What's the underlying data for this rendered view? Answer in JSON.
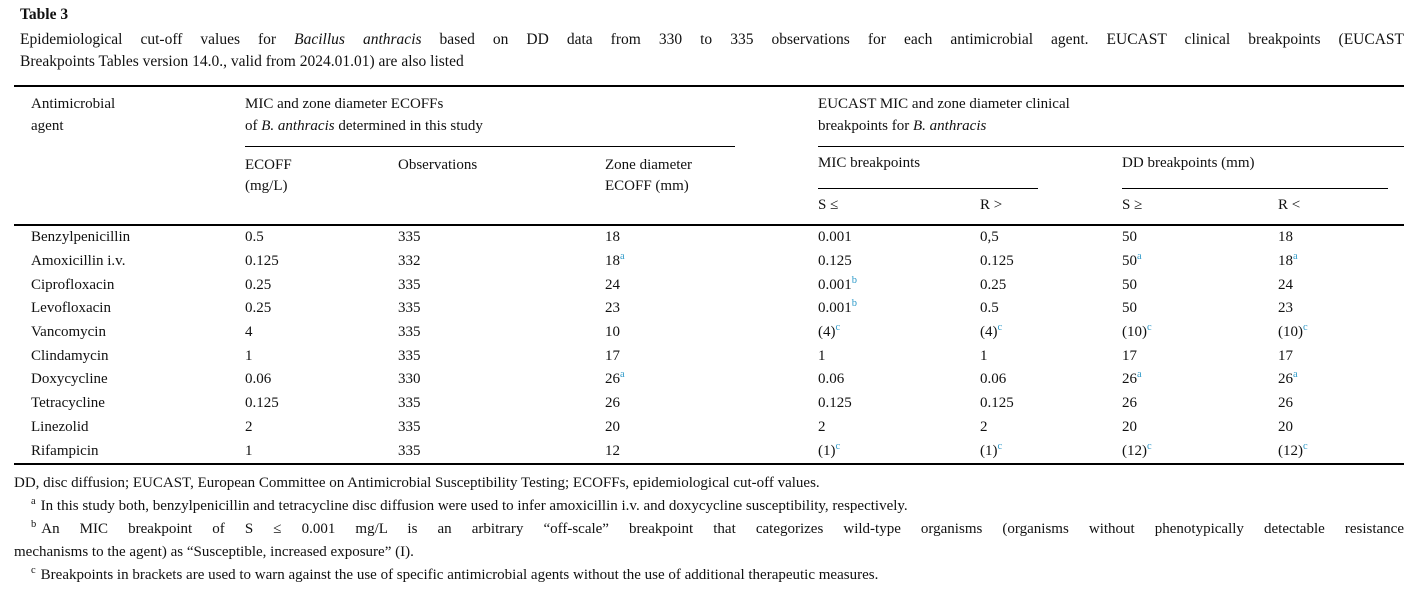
{
  "page": {
    "title": "Table 3"
  },
  "caption": {
    "line1_pre": "Epidemiological cut-off values for ",
    "line1_italic": "Bacillus anthracis",
    "line1_post": " based on DD data from 330 to 335 observations for each antimicrobial agent. EUCAST clinical breakpoints (EUCAST",
    "line2": "Breakpoints Tables version 14.0., valid from 2024.01.01) are also listed"
  },
  "table": {
    "header": {
      "agent_l1": "Antimicrobial",
      "agent_l2": "agent",
      "group1_l1": "MIC and zone diameter ECOFFs",
      "group1_l2a": "of ",
      "group1_l2b": "B. anthracis",
      "group1_l2c": " determined in this study",
      "group2_l1": "EUCAST MIC and zone diameter clinical",
      "group2_l2a": "breakpoints for ",
      "group2_l2b": "B. anthracis",
      "ecoff_l1": "ECOFF",
      "ecoff_l2": "(mg/L)",
      "observations": "Observations",
      "zone_l1": "Zone diameter",
      "zone_l2": "ECOFF (mm)",
      "mic_group": "MIC breakpoints",
      "dd_group": "DD breakpoints (mm)",
      "s_le": "S ≤",
      "r_gt": "R >",
      "s_ge": "S ≥",
      "r_lt": "R <"
    },
    "rows": [
      {
        "agent": "Benzylpenicillin",
        "cells": [
          {
            "v": "0.5"
          },
          {
            "v": "335"
          },
          {
            "v": "18"
          },
          {
            "v": "0.001"
          },
          {
            "v": "0,5"
          },
          {
            "v": "50"
          },
          {
            "v": "18"
          }
        ]
      },
      {
        "agent": "Amoxicillin i.v.",
        "cells": [
          {
            "v": "0.125"
          },
          {
            "v": "332"
          },
          {
            "v": "18",
            "sup": "a"
          },
          {
            "v": "0.125"
          },
          {
            "v": "0.125"
          },
          {
            "v": "50",
            "sup": "a"
          },
          {
            "v": "18",
            "sup": "a"
          }
        ]
      },
      {
        "agent": "Ciprofloxacin",
        "cells": [
          {
            "v": "0.25"
          },
          {
            "v": "335"
          },
          {
            "v": "24"
          },
          {
            "v": "0.001",
            "sup": "b"
          },
          {
            "v": "0.25"
          },
          {
            "v": "50"
          },
          {
            "v": "24"
          }
        ]
      },
      {
        "agent": "Levofloxacin",
        "cells": [
          {
            "v": "0.25"
          },
          {
            "v": "335"
          },
          {
            "v": "23"
          },
          {
            "v": "0.001",
            "sup": "b"
          },
          {
            "v": "0.5"
          },
          {
            "v": "50"
          },
          {
            "v": "23"
          }
        ]
      },
      {
        "agent": "Vancomycin",
        "cells": [
          {
            "v": "4"
          },
          {
            "v": "335"
          },
          {
            "v": "10"
          },
          {
            "v": "(4)",
            "sup": "c"
          },
          {
            "v": "(4)",
            "sup": "c"
          },
          {
            "v": "(10)",
            "sup": "c"
          },
          {
            "v": "(10)",
            "sup": "c"
          }
        ]
      },
      {
        "agent": "Clindamycin",
        "cells": [
          {
            "v": "1"
          },
          {
            "v": "335"
          },
          {
            "v": "17"
          },
          {
            "v": "1"
          },
          {
            "v": "1"
          },
          {
            "v": "17"
          },
          {
            "v": "17"
          }
        ]
      },
      {
        "agent": "Doxycycline",
        "cells": [
          {
            "v": "0.06"
          },
          {
            "v": "330"
          },
          {
            "v": "26",
            "sup": "a"
          },
          {
            "v": "0.06"
          },
          {
            "v": "0.06"
          },
          {
            "v": "26",
            "sup": "a"
          },
          {
            "v": "26",
            "sup": "a"
          }
        ]
      },
      {
        "agent": "Tetracycline",
        "cells": [
          {
            "v": "0.125"
          },
          {
            "v": "335"
          },
          {
            "v": "26"
          },
          {
            "v": "0.125"
          },
          {
            "v": "0.125"
          },
          {
            "v": "26"
          },
          {
            "v": "26"
          }
        ]
      },
      {
        "agent": "Linezolid",
        "cells": [
          {
            "v": "2"
          },
          {
            "v": "335"
          },
          {
            "v": "20"
          },
          {
            "v": "2"
          },
          {
            "v": "2"
          },
          {
            "v": "20"
          },
          {
            "v": "20"
          }
        ]
      },
      {
        "agent": "Rifampicin",
        "cells": [
          {
            "v": "1"
          },
          {
            "v": "335"
          },
          {
            "v": "12"
          },
          {
            "v": "(1)",
            "sup": "c"
          },
          {
            "v": "(1)",
            "sup": "c"
          },
          {
            "v": "(12)",
            "sup": "c"
          },
          {
            "v": "(12)",
            "sup": "c"
          }
        ]
      }
    ]
  },
  "footnotes": {
    "abbreviations": "DD, disc diffusion; EUCAST, European Committee on Antimicrobial Susceptibility Testing; ECOFFs, epidemiological cut-off values.",
    "notes": [
      {
        "marker": "a",
        "lines": [
          "In this study both, benzylpenicillin and tetracycline disc diffusion were used to infer amoxicillin i.v. and doxycycline susceptibility, respectively."
        ]
      },
      {
        "marker": "b",
        "lines": [
          "An MIC breakpoint of S ≤ 0.001 mg/L is an arbitrary “off-scale” breakpoint that categorizes wild-type organisms (organisms without phenotypically detectable resistance",
          "mechanisms to the agent) as “Susceptible, increased exposure” (I)."
        ]
      },
      {
        "marker": "c",
        "lines": [
          "Breakpoints in brackets are used to warn against the use of specific antimicrobial agents without the use of additional therapeutic measures."
        ]
      }
    ]
  },
  "colors": {
    "text": "#111111",
    "rule": "#000000",
    "sup_blue": "#2f9ac9"
  }
}
